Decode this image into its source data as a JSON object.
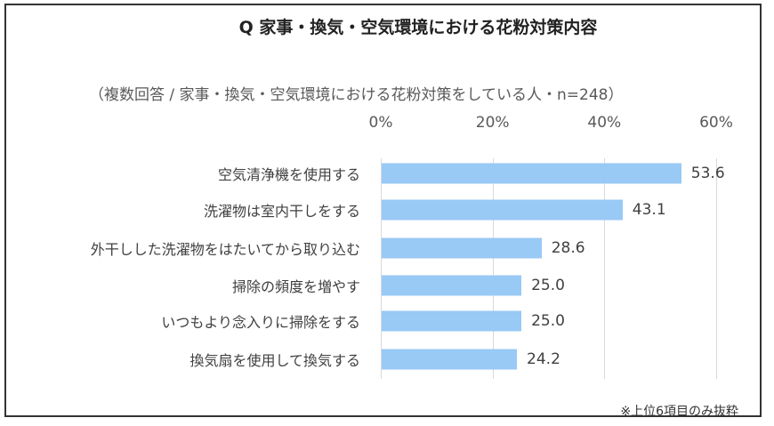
{
  "chart_data": {
    "type": "bar",
    "orientation": "horizontal",
    "title": "Q 家事・換気・空気環境における花粉対策内容",
    "subtitle": "（複数回答 / 家事・換気・空気環境における花粉対策をしている人・n=248）",
    "categories": [
      "空気清浄機を使用する",
      "洗濯物は室内干しをする",
      "外干しした洗濯物をはたいてから取り込む",
      "掃除の頻度を増やす",
      "いつもより念入りに掃除をする",
      "換気扇を使用して換気する"
    ],
    "values": [
      53.6,
      43.1,
      28.6,
      25.0,
      25.0,
      24.2
    ],
    "value_labels": [
      "53.6",
      "43.1",
      "28.6",
      "25.0",
      "25.0",
      "24.2"
    ],
    "xlim": [
      0,
      60
    ],
    "ticks": [
      "0%",
      "20%",
      "40%",
      "60%"
    ],
    "tick_values": [
      0,
      20,
      40,
      60
    ],
    "axis_position": "top",
    "grid": true,
    "bar_color": "#99c9f5",
    "footnote": "※上位6項目のみ抜粋"
  }
}
